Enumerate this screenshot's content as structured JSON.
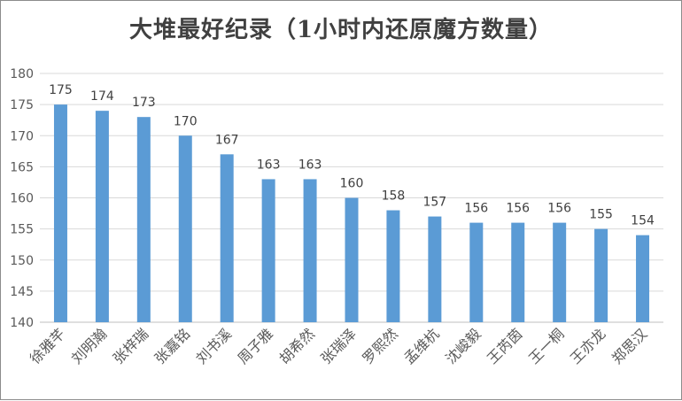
{
  "chart_data": {
    "type": "bar",
    "title": "大堆最好纪录（1小时内还原魔方数量）",
    "categories": [
      "徐雅芊",
      "刘明瀚",
      "张梓瑞",
      "张嘉铭",
      "刘书溪",
      "周子雅",
      "胡希然",
      "张瑞泽",
      "罗熙然",
      "孟维杭",
      "沈峻毅",
      "王芮茵",
      "王一桐",
      "王亦龙",
      "郑思汉"
    ],
    "values": [
      175,
      174,
      173,
      170,
      167,
      163,
      163,
      160,
      158,
      157,
      156,
      156,
      156,
      155,
      154
    ],
    "ylim": [
      140,
      180
    ],
    "yticks": [
      140,
      145,
      150,
      155,
      160,
      165,
      170,
      175,
      180
    ],
    "grid": true,
    "legend": "none",
    "xlabel": "",
    "ylabel": "",
    "colors": {
      "bar": "#5b9bd5",
      "grid": "#d9d9d9",
      "axis": "#bfbfbf"
    }
  }
}
